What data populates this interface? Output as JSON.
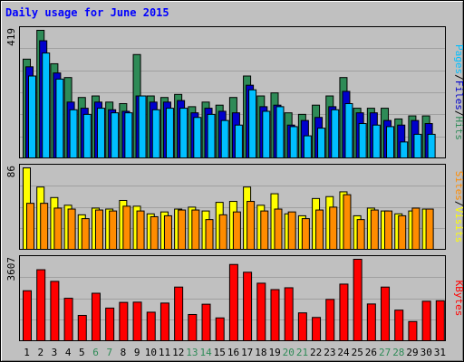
{
  "title": "Daily usage for June 2015",
  "colors": {
    "background": "#c0c0c0",
    "plot_background": "#c0c0c0",
    "grid": "#a0a0a0",
    "hits": "#2e8b57",
    "files": "#0000cc",
    "pages": "#00bfff",
    "visits": "#ffff00",
    "sites": "#ff8c00",
    "kbytes": "#ff0000",
    "weekday_label": "#000000",
    "weekend_label": "#2e8b57"
  },
  "right_labels": {
    "top": [
      {
        "text": "Pages",
        "color": "#00bfff"
      },
      {
        "text": "/",
        "color": "#000000"
      },
      {
        "text": "Files",
        "color": "#0000cc"
      },
      {
        "text": "/",
        "color": "#000000"
      },
      {
        "text": "Hits",
        "color": "#2e8b57"
      }
    ],
    "middle": [
      {
        "text": "Sites",
        "color": "#ff8c00"
      },
      {
        "text": "/",
        "color": "#000000"
      },
      {
        "text": "Visits",
        "color": "#ffff00"
      }
    ],
    "bottom": [
      {
        "text": "KBytes",
        "color": "#ff0000"
      }
    ]
  },
  "chart_data": {
    "type": "bar",
    "categories": [
      "1",
      "2",
      "3",
      "4",
      "5",
      "6",
      "7",
      "8",
      "9",
      "10",
      "11",
      "12",
      "13",
      "14",
      "15",
      "16",
      "17",
      "18",
      "19",
      "20",
      "21",
      "22",
      "23",
      "24",
      "25",
      "26",
      "27",
      "28",
      "29",
      "30",
      "31"
    ],
    "weekend_days": [
      "6",
      "7",
      "13",
      "14",
      "20",
      "21",
      "27",
      "28"
    ],
    "panels": [
      {
        "id": "top",
        "ymax_label": "419",
        "ymax": 419,
        "series": [
          {
            "name": "Hits",
            "color": "#2e8b57",
            "values": [
              325,
              419,
              310,
              265,
              200,
              205,
              185,
              180,
              340,
              205,
              200,
              210,
              170,
              185,
              175,
              200,
              270,
              205,
              215,
              150,
              145,
              175,
              205,
              265,
              165,
              165,
              165,
              130,
              140,
              140,
              0
            ]
          },
          {
            "name": "Files",
            "color": "#0000cc",
            "values": [
              300,
              385,
              280,
              185,
              165,
              185,
              160,
              155,
              205,
              185,
              185,
              190,
              150,
              165,
              155,
              150,
              240,
              170,
              175,
              110,
              125,
              135,
              170,
              220,
              150,
              150,
              125,
              110,
              125,
              115,
              0
            ]
          },
          {
            "name": "Pages",
            "color": "#00bfff",
            "values": [
              270,
              345,
              260,
              160,
              145,
              165,
              150,
              150,
              205,
              160,
              165,
              165,
              135,
              145,
              125,
              110,
              225,
              155,
              170,
              105,
              75,
              100,
              160,
              180,
              115,
              110,
              105,
              55,
              80,
              80,
              0
            ]
          }
        ]
      },
      {
        "id": "middle",
        "ymax_label": "86",
        "ymax": 86,
        "series": [
          {
            "name": "Visits",
            "color": "#ffff00",
            "values": [
              86,
              66,
              55,
              47,
              37,
              44,
              43,
              52,
              46,
              38,
              40,
              43,
              45,
              41,
              50,
              51,
              66,
              47,
              59,
              38,
              36,
              54,
              56,
              61,
              36,
              44,
              41,
              38,
              41,
              43,
              0
            ]
          },
          {
            "name": "Sites",
            "color": "#ff8c00",
            "values": [
              49,
              49,
              44,
              43,
              33,
              42,
              41,
              46,
              41,
              35,
              36,
              42,
              42,
              32,
              37,
              40,
              51,
              41,
              43,
              40,
              33,
              42,
              45,
              58,
              32,
              42,
              41,
              36,
              44,
              43,
              0
            ]
          }
        ]
      },
      {
        "id": "bottom",
        "ymax_label": "3607",
        "ymax": 3607,
        "series": [
          {
            "name": "KBytes",
            "color": "#ff0000",
            "values": [
              2230,
              3150,
              2640,
              1900,
              1150,
              2120,
              1470,
              1720,
              1730,
              1290,
              1690,
              2390,
              1190,
              1640,
              1040,
              3380,
              3040,
              2560,
              2280,
              2360,
              1260,
              1060,
              1850,
              2520,
              3607,
              1650,
              2390,
              1380,
              880,
              1770,
              1790
            ]
          }
        ]
      }
    ]
  }
}
